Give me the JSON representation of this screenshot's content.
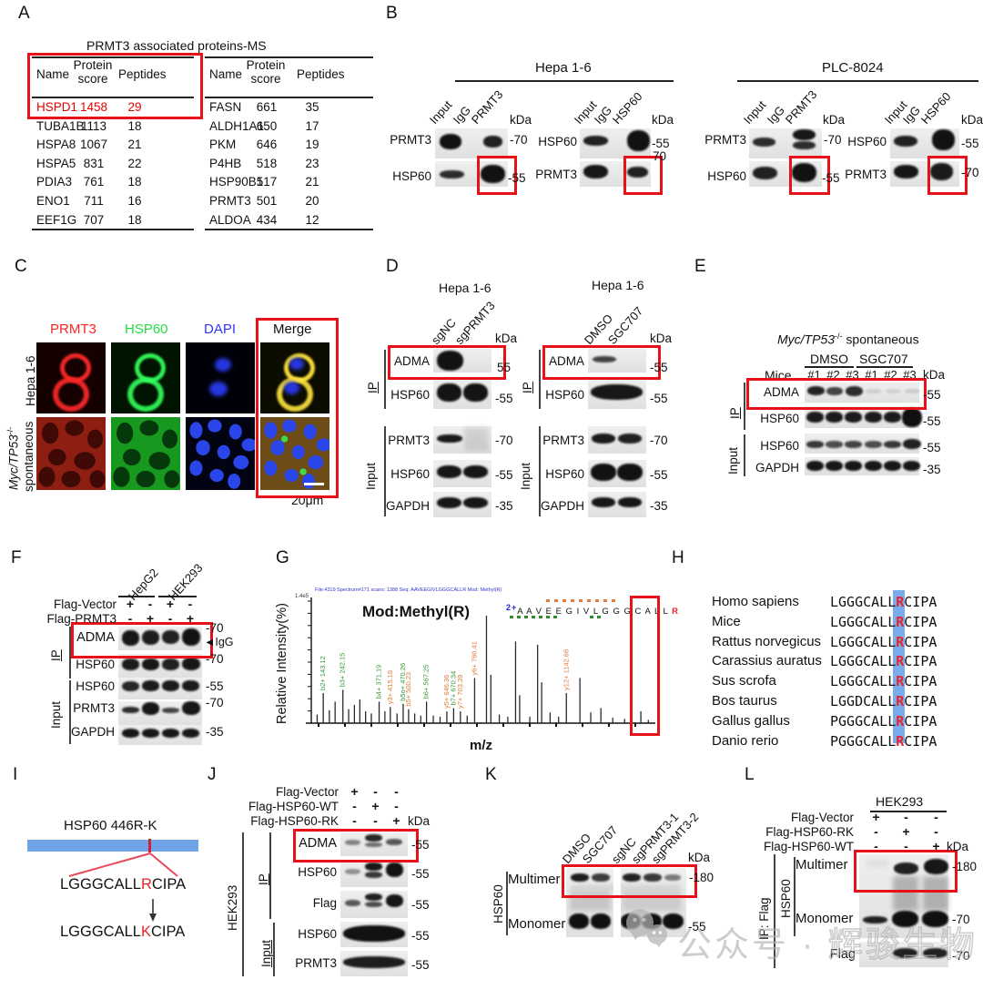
{
  "panels": {
    "a": {
      "label": "A",
      "title": "PRMT3 associated proteins-MS",
      "headers": {
        "name": "Name",
        "score_l1": "Protein",
        "score_l2": "score",
        "peptides": "Peptides"
      },
      "left_rows": [
        {
          "name": "HSPD1",
          "score": "1458",
          "peptides": "29",
          "highlight": true
        },
        {
          "name": "TUBA1B",
          "score": "1113",
          "peptides": "18"
        },
        {
          "name": "HSPA8",
          "score": "1067",
          "peptides": "21"
        },
        {
          "name": "HSPA5",
          "score": "831",
          "peptides": "22"
        },
        {
          "name": "PDIA3",
          "score": "761",
          "peptides": "18"
        },
        {
          "name": "ENO1",
          "score": "711",
          "peptides": "16"
        },
        {
          "name": "EEF1G",
          "score": "707",
          "peptides": "18"
        }
      ],
      "right_rows": [
        {
          "name": "FASN",
          "score": "661",
          "peptides": "35"
        },
        {
          "name": "ALDH1A1",
          "score": "650",
          "peptides": "17"
        },
        {
          "name": "PKM",
          "score": "646",
          "peptides": "19"
        },
        {
          "name": "P4HB",
          "score": "518",
          "peptides": "23"
        },
        {
          "name": "HSP90B1",
          "score": "517",
          "peptides": "21"
        },
        {
          "name": "PRMT3",
          "score": "501",
          "peptides": "20"
        },
        {
          "name": "ALDOA",
          "score": "434",
          "peptides": "12"
        }
      ]
    },
    "b": {
      "label": "B",
      "groups": [
        {
          "title": "Hepa 1-6",
          "blots": [
            {
              "lanes": [
                "Input",
                "IgG",
                "PRMT3"
              ],
              "kda": "kDa",
              "rows": [
                {
                  "ab": "PRMT3",
                  "marker": "-70"
                },
                {
                  "ab": "HSP60",
                  "marker": "-55"
                }
              ]
            },
            {
              "lanes": [
                "Input",
                "IgG",
                "HSP60"
              ],
              "kda": "kDa",
              "rows": [
                {
                  "ab": "HSP60",
                  "marker": "-55"
                },
                {
                  "ab": "PRMT3",
                  "marker": "70"
                }
              ]
            }
          ]
        },
        {
          "title": "PLC-8024",
          "blots": [
            {
              "lanes": [
                "Input",
                "IgG",
                "PRMT3"
              ],
              "kda": "kDa",
              "rows": [
                {
                  "ab": "PRMT3",
                  "marker": "-70"
                },
                {
                  "ab": "HSP60",
                  "marker": "-55"
                }
              ]
            },
            {
              "lanes": [
                "Input",
                "IgG",
                "HSP60"
              ],
              "kda": "kDa",
              "rows": [
                {
                  "ab": "HSP60",
                  "marker": "-55"
                },
                {
                  "ab": "PRMT3",
                  "marker": "-70"
                }
              ]
            }
          ]
        }
      ]
    },
    "c": {
      "label": "C",
      "columns": [
        {
          "t": "PRMT3",
          "color": "#ff2222"
        },
        {
          "t": "HSP60",
          "color": "#22dd44"
        },
        {
          "t": "DAPI",
          "color": "#3333ff"
        },
        {
          "t": "Merge",
          "color": "#111111"
        }
      ],
      "row1": "Hepa 1-6",
      "row2_italic": "Myc/TP53",
      "row2_sup": "-/-",
      "row2_rest": "spontaneous",
      "scale": "20μm"
    },
    "d": {
      "label": "D",
      "blots": [
        {
          "title": "Hepa 1-6",
          "lanes": [
            "sgNC",
            "sgPRMT3"
          ],
          "kda": "kDa",
          "ip": "IP",
          "input": "Input",
          "ip_rows": [
            {
              "ab": "ADMA",
              "marker": "55"
            },
            {
              "ab": "HSP60",
              "marker": "-55"
            }
          ],
          "input_rows": [
            {
              "ab": "PRMT3",
              "marker": "-70"
            },
            {
              "ab": "HSP60",
              "marker": "-55"
            },
            {
              "ab": "GAPDH",
              "marker": "-35"
            }
          ]
        },
        {
          "title": "Hepa 1-6",
          "lanes": [
            "DMSO",
            "SGC707"
          ],
          "kda": "kDa",
          "ip": "IP",
          "input": "Input",
          "ip_rows": [
            {
              "ab": "ADMA",
              "marker": "-55"
            },
            {
              "ab": "HSP60",
              "marker": "-55"
            }
          ],
          "input_rows": [
            {
              "ab": "PRMT3",
              "marker": "-70"
            },
            {
              "ab": "HSP60",
              "marker": "-55"
            },
            {
              "ab": "GAPDH",
              "marker": "-35"
            }
          ]
        }
      ]
    },
    "e": {
      "label": "E",
      "title_italic": "Myc/TP53",
      "title_sup": "-/-",
      "title_rest": " spontaneous",
      "groups": [
        "DMSO",
        "SGC707"
      ],
      "mice": "Mice",
      "mice_nums": [
        "#1",
        "#2",
        "#3",
        "#1",
        "#2",
        "#3"
      ],
      "kda": "kDa",
      "ip": "IP",
      "input": "Input",
      "ip_rows": [
        {
          "ab": "ADMA",
          "marker": "-55"
        },
        {
          "ab": "HSP60",
          "marker": "-55"
        }
      ],
      "input_rows": [
        {
          "ab": "HSP60",
          "marker": "-55"
        },
        {
          "ab": "GAPDH",
          "marker": "-35"
        }
      ]
    },
    "f": {
      "label": "F",
      "cell_lines": [
        "HepG2",
        "HEK293"
      ],
      "constructs": [
        {
          "name": "Flag-Vector",
          "vals": [
            "+",
            "-",
            "+",
            "-"
          ]
        },
        {
          "name": "Flag-PRMT3",
          "vals": [
            "-",
            "+",
            "-",
            "+"
          ]
        }
      ],
      "ip": "IP",
      "input": "Input",
      "igg": "◄IgG",
      "ip_rows": [
        {
          "ab": "ADMA",
          "marker": "-70"
        },
        {
          "ab": "HSP60",
          "marker": "-70"
        }
      ],
      "input_rows": [
        {
          "ab": "HSP60",
          "marker": "-55"
        },
        {
          "ab": "PRMT3",
          "marker": "-70"
        },
        {
          "ab": "GAPDH",
          "marker": "-35"
        }
      ]
    },
    "g": {
      "label": "G",
      "title": "Mod:Methyl(R)",
      "ylabel": "Relative Intensity(%)",
      "xlabel": "m/z",
      "header_line": "File:4319 Spectrum#171 scans: 1388   Seq: AAVEEGIVLGGGCALLR   Mod: Methyl(R)",
      "yscale": "1.4e5",
      "charge": "2+",
      "sequence": "A A V E E G I V L G G G C A L L ",
      "seq_r": "R"
    },
    "h": {
      "label": "H",
      "rows": [
        {
          "species": "Homo sapiens",
          "prefix": "LGGGCALL",
          "r": "R",
          "suffix": "CIPA"
        },
        {
          "species": "Mice",
          "prefix": "LGGGCALL",
          "r": "R",
          "suffix": "CIPA"
        },
        {
          "species": "Rattus norvegicus",
          "prefix": "LGGGCALL",
          "r": "R",
          "suffix": "CIPA"
        },
        {
          "species": "Carassius auratus",
          "prefix": "LGGGCALL",
          "r": "R",
          "suffix": "CIPA"
        },
        {
          "species": "Sus scrofa",
          "prefix": "LGGGCALL",
          "r": "R",
          "suffix": "CIPA"
        },
        {
          "species": "Bos taurus",
          "prefix": "LGGDCALL",
          "r": "R",
          "suffix": "CIPA"
        },
        {
          "species": "Gallus gallus",
          "prefix": "PGGGCALL",
          "r": "R",
          "suffix": "CIPA"
        },
        {
          "species": "Danio rerio",
          "prefix": "PGGGCALL",
          "r": "R",
          "suffix": "CIPA"
        }
      ]
    },
    "i": {
      "label": "I",
      "title": "HSP60 446R-K",
      "seq1": {
        "pre": "LGGGCALL",
        "mid": "R",
        "suf": "CIPA"
      },
      "seq2": {
        "pre": "LGGGCALL",
        "mid": "K",
        "suf": "CIPA"
      }
    },
    "j": {
      "label": "J",
      "cell_line": "HEK293",
      "kda": "kDa",
      "ip": "IP",
      "input": "Input",
      "constructs": [
        {
          "name": "Flag-Vector",
          "vals": [
            "+",
            "-",
            "-"
          ]
        },
        {
          "name": "Flag-HSP60-WT",
          "vals": [
            "-",
            "+",
            "-"
          ]
        },
        {
          "name": "Flag-HSP60-RK",
          "vals": [
            "-",
            "-",
            "+"
          ]
        }
      ],
      "ip_rows": [
        {
          "ab": "ADMA",
          "marker": "-55"
        },
        {
          "ab": "HSP60",
          "marker": "-55"
        },
        {
          "ab": "Flag",
          "marker": "-55"
        }
      ],
      "input_rows": [
        {
          "ab": "HSP60",
          "marker": "-55"
        },
        {
          "ab": "PRMT3",
          "marker": "-55"
        }
      ]
    },
    "k": {
      "label": "K",
      "lanes": [
        "DMSO",
        "SGC707",
        "sgNC",
        "sgPRMT3-1",
        "sgPRMT3-2"
      ],
      "kda": "kDa",
      "group": "HSP60",
      "rows": [
        {
          "name": "Multimer",
          "marker": "-180"
        },
        {
          "name": "Monomer",
          "marker": "-55"
        }
      ]
    },
    "l": {
      "label": "L",
      "cell_line": "HEK293",
      "kda": "kDa",
      "ip": "IP: Flag",
      "group": "HSP60",
      "constructs": [
        {
          "name": "Flag-Vector",
          "vals": [
            "+",
            "-",
            "-"
          ]
        },
        {
          "name": "Flag-HSP60-RK",
          "vals": [
            "-",
            "+",
            "-"
          ]
        },
        {
          "name": "Flag-HSP60-WT",
          "vals": [
            "-",
            "-",
            "+"
          ]
        }
      ],
      "rows": [
        {
          "name": "Multimer",
          "marker": "-180"
        },
        {
          "name": "Monomer",
          "marker": "-70"
        }
      ],
      "flag_row": {
        "ab": "Flag",
        "marker": "-70"
      }
    }
  },
  "watermark": {
    "prefix": "公众号",
    "dot": "·",
    "suffix": "辉骏生物"
  },
  "chart_data": {
    "type": "bar",
    "title": "Mod:Methyl(R)",
    "xlabel": "m/z",
    "ylabel": "Relative Intensity(%)",
    "peptide": "AAVEEGIVLGGGCALLR",
    "modification": "Methyl(R)",
    "charge": "2+",
    "ylim": [
      0,
      100
    ],
    "x_axis_note": "m/z axis, tick labels unreadable in source; x given as 0-1 plot fraction",
    "peaks": [
      {
        "x": 0.012,
        "h": 0.08
      },
      {
        "x": 0.03,
        "h": 0.28,
        "label": "b2+ 143.12",
        "ion": "b"
      },
      {
        "x": 0.048,
        "h": 0.12
      },
      {
        "x": 0.065,
        "h": 0.2
      },
      {
        "x": 0.088,
        "h": 0.31,
        "label": "b3+ 242.15",
        "ion": "b"
      },
      {
        "x": 0.105,
        "h": 0.13
      },
      {
        "x": 0.122,
        "h": 0.17
      },
      {
        "x": 0.138,
        "h": 0.22
      },
      {
        "x": 0.155,
        "h": 0.11
      },
      {
        "x": 0.172,
        "h": 0.09
      },
      {
        "x": 0.195,
        "h": 0.2,
        "label": "b4+ 371.19",
        "ion": "b"
      },
      {
        "x": 0.212,
        "h": 0.11
      },
      {
        "x": 0.228,
        "h": 0.15,
        "label": "y3+ 415.18",
        "ion": "y"
      },
      {
        "x": 0.248,
        "h": 0.09
      },
      {
        "x": 0.266,
        "h": 0.18,
        "label": "b5o+ 470.26",
        "ion": "b"
      },
      {
        "x": 0.282,
        "h": 0.13,
        "label": "b5+ 500.23",
        "ion": "y"
      },
      {
        "x": 0.3,
        "h": 0.09
      },
      {
        "x": 0.318,
        "h": 0.07
      },
      {
        "x": 0.335,
        "h": 0.2,
        "label": "b6+ 567.25",
        "ion": "b"
      },
      {
        "x": 0.355,
        "h": 0.07
      },
      {
        "x": 0.375,
        "h": 0.06
      },
      {
        "x": 0.395,
        "h": 0.11,
        "label": "y5+ 646.36",
        "ion": "y"
      },
      {
        "x": 0.415,
        "h": 0.14,
        "label": "b7+ 670.34",
        "ion": "b"
      },
      {
        "x": 0.435,
        "h": 0.11,
        "label": "y7+ 703.39",
        "ion": "y"
      },
      {
        "x": 0.455,
        "h": 0.07
      },
      {
        "x": 0.477,
        "h": 0.42,
        "label": "y6+ 760.41",
        "ion": "y"
      },
      {
        "x": 0.512,
        "h": 1.0
      },
      {
        "x": 0.525,
        "h": 0.45
      },
      {
        "x": 0.55,
        "h": 0.08
      },
      {
        "x": 0.575,
        "h": 0.06
      },
      {
        "x": 0.598,
        "h": 0.76
      },
      {
        "x": 0.61,
        "h": 0.26
      },
      {
        "x": 0.64,
        "h": 0.06
      },
      {
        "x": 0.663,
        "h": 0.73
      },
      {
        "x": 0.675,
        "h": 0.38
      },
      {
        "x": 0.7,
        "h": 0.1
      },
      {
        "x": 0.725,
        "h": 0.06
      },
      {
        "x": 0.748,
        "h": 0.28,
        "label": "y12+ 1142.66",
        "ion": "y"
      },
      {
        "x": 0.788,
        "h": 0.42
      },
      {
        "x": 0.82,
        "h": 0.1
      },
      {
        "x": 0.85,
        "h": 0.14
      },
      {
        "x": 0.885,
        "h": 0.05
      },
      {
        "x": 0.92,
        "h": 0.04
      },
      {
        "x": 0.968,
        "h": 0.11
      },
      {
        "x": 0.99,
        "h": 0.03
      }
    ],
    "ion_colors": {
      "b": "#3a9a3a",
      "y": "#e07b39"
    },
    "legend_position": "none",
    "grid": false
  }
}
